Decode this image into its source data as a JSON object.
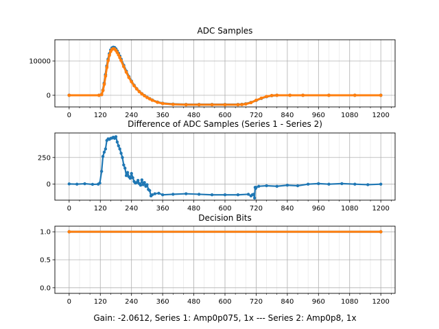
{
  "chart_data": [
    {
      "type": "scatter",
      "title": "ADC Samples",
      "xlim": [
        -55,
        1255
      ],
      "ylim": [
        -3400,
        16200
      ],
      "xticks": [
        0,
        120,
        240,
        360,
        480,
        600,
        720,
        840,
        960,
        1080,
        1200
      ],
      "xtick_labels": [
        "0",
        "120",
        "240",
        "360",
        "480",
        "600",
        "720",
        "840",
        "960",
        "1080",
        "1200"
      ],
      "yticks": [
        0,
        10000
      ],
      "ytick_labels": [
        "0",
        "10000"
      ],
      "minor_step": 40,
      "grid": true,
      "series": [
        {
          "name": "Series 1",
          "color": "#1f77b4",
          "line_width": 3,
          "marker_radius": 2.4,
          "x": [
            0,
            115,
            125,
            130,
            135,
            140,
            145,
            150,
            155,
            160,
            165,
            170,
            175,
            180,
            185,
            190,
            195,
            200,
            210,
            220,
            230,
            240,
            250,
            260,
            270,
            280,
            290,
            300,
            310,
            320,
            340,
            360,
            400,
            450,
            500,
            550,
            600,
            650,
            665,
            680,
            700,
            720,
            740,
            760,
            780,
            800,
            850,
            900,
            1000,
            1100,
            1200
          ],
          "y": [
            0,
            0,
            200,
            1500,
            3500,
            6000,
            8500,
            10500,
            12100,
            13200,
            13800,
            14000,
            13900,
            13500,
            12900,
            12200,
            11400,
            10500,
            8700,
            7000,
            5400,
            4100,
            2900,
            1900,
            1100,
            450,
            -100,
            -600,
            -1000,
            -1400,
            -2000,
            -2350,
            -2600,
            -2700,
            -2700,
            -2700,
            -2700,
            -2700,
            -2650,
            -2500,
            -2100,
            -1500,
            -900,
            -400,
            -100,
            0,
            0,
            0,
            0,
            0,
            0
          ]
        },
        {
          "name": "Series 2",
          "color": "#ff7f0e",
          "line_width": 3,
          "marker_radius": 2.4,
          "x": [
            0,
            115,
            125,
            130,
            135,
            140,
            145,
            150,
            155,
            160,
            165,
            170,
            175,
            180,
            185,
            190,
            195,
            200,
            210,
            220,
            230,
            240,
            250,
            260,
            270,
            280,
            290,
            300,
            310,
            320,
            340,
            360,
            400,
            450,
            500,
            550,
            600,
            650,
            665,
            680,
            700,
            720,
            740,
            760,
            780,
            800,
            850,
            900,
            1000,
            1100,
            1200
          ],
          "y": [
            0,
            0,
            200,
            1400,
            3200,
            5600,
            8100,
            10100,
            11700,
            12800,
            13400,
            13600,
            13500,
            13100,
            12500,
            11800,
            11000,
            10150,
            8400,
            6750,
            5200,
            3950,
            2800,
            1850,
            1050,
            400,
            -150,
            -650,
            -1050,
            -1450,
            -2050,
            -2400,
            -2650,
            -2750,
            -2750,
            -2750,
            -2750,
            -2750,
            -2700,
            -2550,
            -2150,
            -1450,
            -850,
            -350,
            -80,
            0,
            0,
            0,
            0,
            0,
            0
          ]
        }
      ]
    },
    {
      "type": "scatter",
      "title": "Difference of ADC Samples (Series 1 - Series 2)",
      "xlim": [
        -55,
        1255
      ],
      "ylim": [
        -150,
        480
      ],
      "xticks": [
        0,
        120,
        240,
        360,
        480,
        600,
        720,
        840,
        960,
        1080,
        1200
      ],
      "xtick_labels": [
        "0",
        "120",
        "240",
        "360",
        "480",
        "600",
        "720",
        "840",
        "960",
        "1080",
        "1200"
      ],
      "yticks": [
        0,
        250
      ],
      "ytick_labels": [
        "0",
        "250"
      ],
      "minor_step": 40,
      "grid": true,
      "series": [
        {
          "name": "Difference",
          "color": "#1f77b4",
          "line_width": 2.2,
          "marker_radius": 2.2,
          "x": [
            0,
            30,
            60,
            90,
            112,
            118,
            125,
            130,
            135,
            140,
            145,
            150,
            155,
            160,
            165,
            170,
            175,
            180,
            185,
            190,
            195,
            200,
            205,
            210,
            215,
            220,
            225,
            230,
            235,
            240,
            245,
            250,
            255,
            260,
            265,
            270,
            275,
            280,
            285,
            290,
            295,
            300,
            305,
            310,
            315,
            320,
            330,
            345,
            360,
            400,
            450,
            500,
            550,
            600,
            650,
            690,
            700,
            705,
            710,
            714,
            716,
            718,
            720,
            730,
            760,
            800,
            840,
            880,
            920,
            960,
            1000,
            1050,
            1100,
            1150,
            1200
          ],
          "y": [
            2,
            0,
            4,
            -2,
            0,
            10,
            120,
            260,
            300,
            330,
            410,
            425,
            420,
            430,
            432,
            440,
            430,
            445,
            395,
            360,
            330,
            290,
            250,
            180,
            150,
            80,
            110,
            70,
            55,
            100,
            60,
            25,
            10,
            15,
            35,
            5,
            -10,
            40,
            -5,
            15,
            -20,
            -5,
            -50,
            -60,
            -110,
            -100,
            -90,
            -85,
            -100,
            -95,
            -90,
            -95,
            -100,
            -100,
            -100,
            -95,
            -110,
            -100,
            -95,
            -130,
            -30,
            -40,
            -30,
            -20,
            -15,
            -20,
            -10,
            -15,
            0,
            5,
            0,
            5,
            0,
            -5,
            0
          ]
        }
      ]
    },
    {
      "type": "scatter",
      "title": "Decision Bits",
      "xlim": [
        -55,
        1255
      ],
      "ylim": [
        -0.1,
        1.1
      ],
      "xticks": [
        0,
        120,
        240,
        360,
        480,
        600,
        720,
        840,
        960,
        1080,
        1200
      ],
      "xtick_labels": [
        "0",
        "120",
        "240",
        "360",
        "480",
        "600",
        "720",
        "840",
        "960",
        "1080",
        "1200"
      ],
      "yticks": [
        0.0,
        0.5,
        1.0
      ],
      "ytick_labels": [
        "0.0",
        "0.5",
        "1.0"
      ],
      "minor_step": 40,
      "grid": true,
      "series": [
        {
          "name": "Series 1",
          "color": "#1f77b4",
          "line_width": 3,
          "marker_radius": 2.4,
          "x": [
            0,
            1200
          ],
          "y": [
            1,
            1
          ]
        },
        {
          "name": "Series 2",
          "color": "#ff7f0e",
          "line_width": 3,
          "marker_radius": 2.4,
          "x": [
            0,
            1200
          ],
          "y": [
            1,
            1
          ]
        }
      ]
    }
  ],
  "caption": "Gain: -2.0612, Series 1: Amp0p075, 1x --- Series 2: Amp0p8, 1x"
}
